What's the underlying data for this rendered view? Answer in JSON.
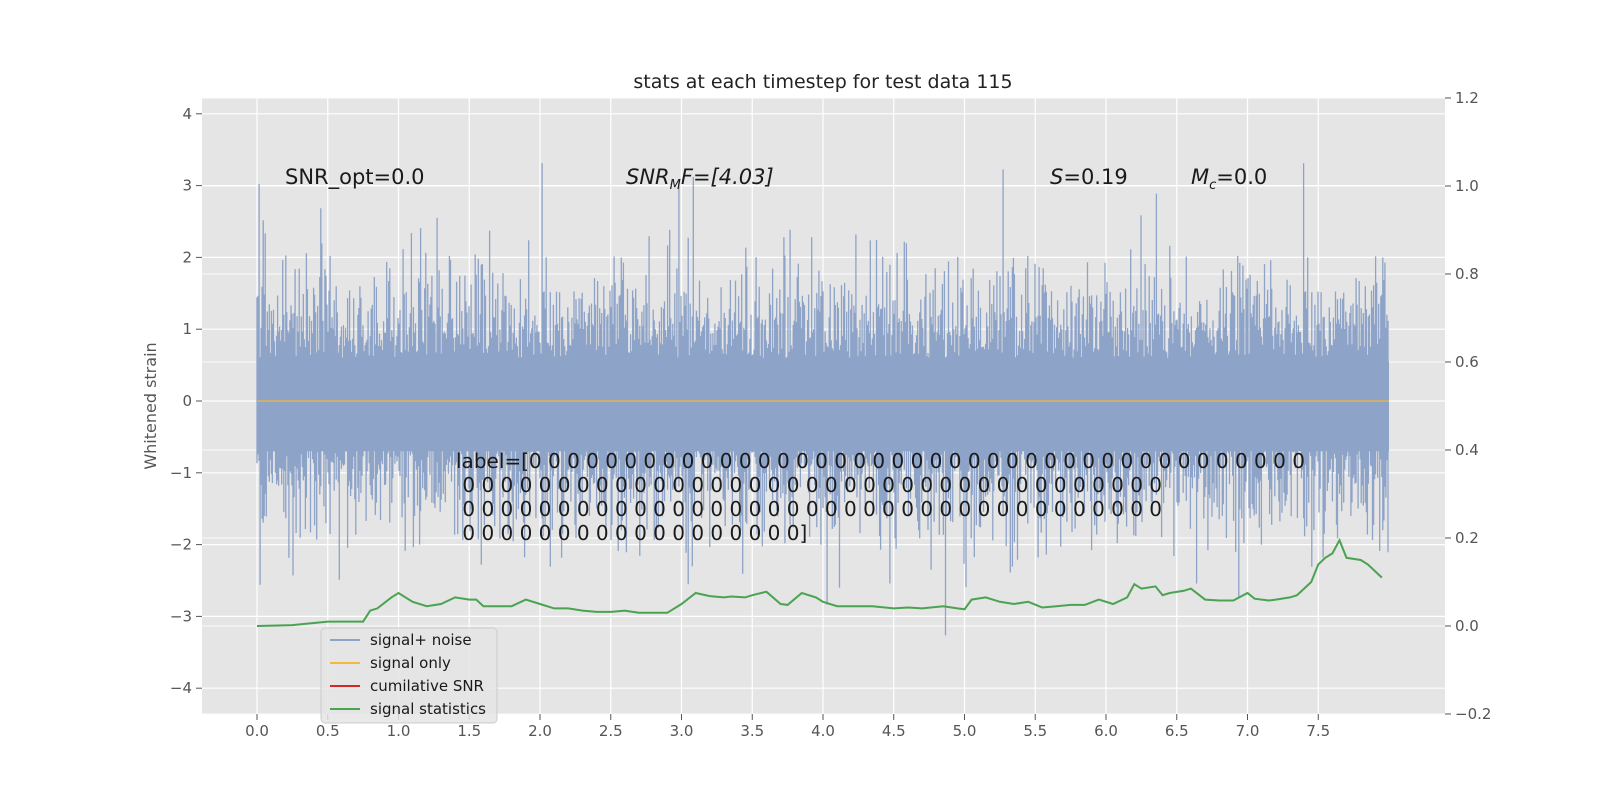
{
  "chart_data": {
    "type": "line",
    "title": "stats at each timestep for test data 115",
    "ylabel": "Whitened strain",
    "xlim": [
      -0.37,
      8.1
    ],
    "ylim": [
      -4.4,
      4.2
    ],
    "y2lim": [
      -0.2,
      1.2
    ],
    "x_ticks": [
      "0.0",
      "0.5",
      "1.0",
      "1.5",
      "2.0",
      "2.5",
      "3.0",
      "3.5",
      "4.0",
      "4.5",
      "5.0",
      "5.5",
      "6.0",
      "6.5",
      "7.0",
      "7.5"
    ],
    "y_ticks": [
      "4",
      "3",
      "2",
      "1",
      "0",
      "−1",
      "−2",
      "−3",
      "−4"
    ],
    "y2_ticks": [
      "1.2",
      "1.0",
      "0.8",
      "0.6",
      "0.4",
      "0.2",
      "0.0",
      "−0.2"
    ],
    "annotations": {
      "snr_opt": "SNR_opt=0.0",
      "snr_mf_pre": "SNR",
      "snr_mf_sub": "M",
      "snr_mf_post": "F=[4.03]",
      "s_var": "S",
      "s_val": "=0.19",
      "mc_var": "M",
      "mc_sub": "c",
      "mc_val": "=0.0"
    },
    "label_lines": [
      "label=[0 0 0 0 0 0 0 0 0 0 0 0 0 0 0 0 0 0 0 0 0 0 0 0 0 0 0 0 0 0 0 0 0 0 0 0 0 0 0 0 0",
      " 0 0 0 0 0 0 0 0 0 0 0 0 0 0 0 0 0 0 0 0 0 0 0 0 0 0 0 0 0 0 0 0 0 0 0 0 0",
      " 0 0 0 0 0 0 0 0 0 0 0 0 0 0 0 0 0 0 0 0 0 0 0 0 0 0 0 0 0 0 0 0 0 0 0 0 0",
      " 0 0 0 0 0 0 0 0 0 0 0 0 0 0 0 0 0 0]"
    ],
    "legend": [
      {
        "name": "signal+ noise",
        "color": "#8ea3c8"
      },
      {
        "name": "signal only",
        "color": "#f2b93b"
      },
      {
        "name": "cumilative SNR",
        "color": "#d62728"
      },
      {
        "name": "signal statistics",
        "color": "#4aa351"
      }
    ],
    "series": [
      {
        "name": "signal+ noise",
        "axis": "left",
        "style": "noise band, approx range -3.8 to 3.85 over x 0 to 8"
      },
      {
        "name": "signal only",
        "axis": "left",
        "x": [
          0,
          8
        ],
        "values": [
          0,
          0
        ]
      },
      {
        "name": "signal statistics",
        "axis": "right",
        "x": [
          0,
          0.25,
          0.5,
          0.6,
          0.75,
          0.8,
          0.85,
          0.95,
          1.0,
          1.1,
          1.2,
          1.3,
          1.4,
          1.5,
          1.55,
          1.6,
          1.8,
          1.9,
          2.0,
          2.1,
          2.2,
          2.3,
          2.4,
          2.5,
          2.6,
          2.7,
          2.9,
          3.0,
          3.1,
          3.2,
          3.3,
          3.35,
          3.45,
          3.5,
          3.6,
          3.7,
          3.75,
          3.85,
          3.95,
          4.0,
          4.1,
          4.25,
          4.35,
          4.5,
          4.6,
          4.7,
          4.85,
          4.95,
          5.0,
          5.05,
          5.15,
          5.25,
          5.35,
          5.45,
          5.55,
          5.65,
          5.75,
          5.85,
          5.95,
          6.05,
          6.15,
          6.2,
          6.25,
          6.35,
          6.4,
          6.45,
          6.55,
          6.6,
          6.7,
          6.8,
          6.9,
          7.0,
          7.05,
          7.15,
          7.2,
          7.3,
          7.35,
          7.45,
          7.5,
          7.55,
          7.6,
          7.65,
          7.7,
          7.8,
          7.85,
          7.95
        ],
        "values": [
          0.0,
          0.002,
          0.01,
          0.01,
          0.01,
          0.035,
          0.04,
          0.065,
          0.075,
          0.055,
          0.045,
          0.05,
          0.065,
          0.06,
          0.06,
          0.045,
          0.045,
          0.06,
          0.05,
          0.04,
          0.04,
          0.035,
          0.032,
          0.032,
          0.035,
          0.03,
          0.03,
          0.05,
          0.075,
          0.068,
          0.065,
          0.067,
          0.065,
          0.07,
          0.078,
          0.05,
          0.048,
          0.075,
          0.065,
          0.055,
          0.045,
          0.045,
          0.045,
          0.04,
          0.042,
          0.04,
          0.045,
          0.04,
          0.038,
          0.06,
          0.065,
          0.055,
          0.05,
          0.055,
          0.042,
          0.045,
          0.048,
          0.048,
          0.06,
          0.05,
          0.065,
          0.095,
          0.085,
          0.09,
          0.07,
          0.075,
          0.08,
          0.085,
          0.06,
          0.058,
          0.058,
          0.075,
          0.062,
          0.058,
          0.06,
          0.065,
          0.07,
          0.1,
          0.14,
          0.155,
          0.165,
          0.195,
          0.155,
          0.15,
          0.14,
          0.11
        ]
      }
    ]
  }
}
